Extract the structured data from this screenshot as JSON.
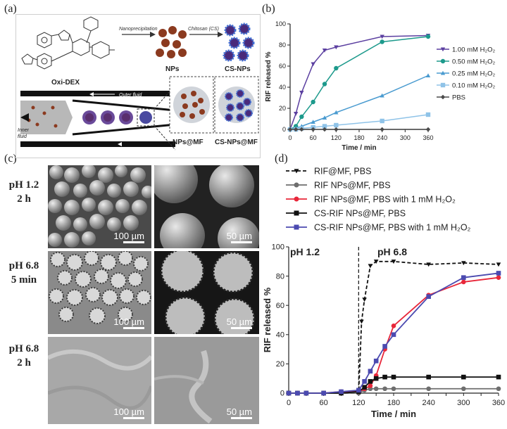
{
  "panels": {
    "a": {
      "label": "(a)",
      "chem_name": "Oxi-DEX",
      "step1_label": "Nanoprecipitation",
      "step2_label": "Chitosan (CS)",
      "np_label": "NPs",
      "csnp_label": "CS-NPs",
      "outer_fluid": "Outer fluid",
      "inner_fluid_1": "Inner",
      "inner_fluid_2": "fluid",
      "np_mf": "NPs@MF",
      "csnp_mf": "CS-NPs@MF",
      "colors": {
        "np": "#8b3a1f",
        "csnp_core": "#4a2a7a",
        "csnp_shell": "#3d6fd6"
      }
    },
    "b": {
      "label": "(b)"
    },
    "c": {
      "label": "(c)",
      "rows": [
        {
          "condition": "pH 1.2",
          "time": "2 h",
          "scale_left": "100 µm",
          "scale_right": "50 µm"
        },
        {
          "condition": "pH 6.8",
          "time": "5 min",
          "scale_left": "100 µm",
          "scale_right": "50 µm"
        },
        {
          "condition": "pH 6.8",
          "time": "2 h",
          "scale_left": "100 µm",
          "scale_right": "50 µm"
        }
      ]
    },
    "d": {
      "label": "(d)",
      "region_1": "pH 1.2",
      "region_2": "pH 6.8"
    }
  },
  "chart_data": [
    {
      "type": "line",
      "panel": "b",
      "xlabel": "Time / min",
      "ylabel": "RIF released %",
      "xlim": [
        0,
        360
      ],
      "ylim": [
        0,
        100
      ],
      "xticks": [
        0,
        60,
        120,
        180,
        240,
        300,
        360
      ],
      "yticks": [
        0,
        20,
        40,
        60,
        80,
        100
      ],
      "legend_position": "right",
      "series": [
        {
          "name": "1.00 mM H₂O₂",
          "color": "#5b3fa0",
          "marker": "triangle-down",
          "x": [
            0,
            15,
            30,
            60,
            90,
            120,
            240,
            360
          ],
          "y": [
            0,
            15,
            35,
            62,
            75,
            78,
            88,
            89
          ]
        },
        {
          "name": "0.50 mM H₂O₂",
          "color": "#1d9a8c",
          "marker": "circle",
          "x": [
            0,
            15,
            30,
            60,
            90,
            120,
            240,
            360
          ],
          "y": [
            0,
            3,
            12,
            26,
            43,
            58,
            83,
            88
          ]
        },
        {
          "name": "0.25 mM H₂O₂",
          "color": "#4a9bd0",
          "marker": "triangle-up",
          "x": [
            0,
            15,
            30,
            60,
            90,
            120,
            240,
            360
          ],
          "y": [
            0,
            1,
            3,
            7,
            11,
            16,
            32,
            51
          ]
        },
        {
          "name": "0.10 mM H₂O₂",
          "color": "#8fc3e8",
          "marker": "square",
          "x": [
            0,
            15,
            30,
            60,
            90,
            120,
            240,
            360
          ],
          "y": [
            0,
            0,
            1,
            2,
            3,
            4,
            8,
            14
          ]
        },
        {
          "name": "PBS",
          "color": "#4a4a4a",
          "marker": "diamond",
          "x": [
            0,
            15,
            30,
            60,
            90,
            120,
            240,
            360
          ],
          "y": [
            0,
            0,
            0,
            0,
            0,
            0,
            0,
            0
          ]
        }
      ]
    },
    {
      "type": "line",
      "panel": "d",
      "xlabel": "Time / min",
      "ylabel": "RIF released %",
      "xlim": [
        0,
        360
      ],
      "ylim": [
        0,
        100
      ],
      "xticks": [
        0,
        30,
        60,
        90,
        120,
        150,
        180,
        210,
        240,
        270,
        300,
        330,
        360
      ],
      "xtick_labels": [
        "0",
        "",
        "60",
        "",
        "120",
        "",
        "180",
        "",
        "240",
        "",
        "300",
        "",
        "360"
      ],
      "yticks": [
        0,
        20,
        40,
        60,
        80,
        100
      ],
      "legend_position": "top",
      "series": [
        {
          "name": "RIF@MF, PBS",
          "color": "#111111",
          "marker": "triangle-down",
          "dash": true,
          "x": [
            0,
            15,
            30,
            60,
            90,
            120,
            125,
            130,
            140,
            150,
            180,
            240,
            300,
            360
          ],
          "y": [
            0,
            0,
            0,
            0,
            0,
            0,
            49,
            64,
            87,
            90,
            90,
            88,
            89,
            88
          ]
        },
        {
          "name": "RIF NPs@MF, PBS",
          "color": "#6e6e6e",
          "marker": "circle",
          "x": [
            0,
            15,
            30,
            60,
            90,
            120,
            130,
            140,
            150,
            165,
            180,
            240,
            300,
            360
          ],
          "y": [
            0,
            0,
            0,
            0,
            0,
            0,
            2,
            3,
            3,
            3,
            3,
            3,
            3,
            3
          ]
        },
        {
          "name": "RIF NPs@MF, PBS with 1 mM H₂O₂",
          "color": "#e8273a",
          "marker": "circle",
          "x": [
            0,
            15,
            30,
            60,
            90,
            120,
            130,
            140,
            150,
            165,
            180,
            240,
            300,
            360
          ],
          "y": [
            0,
            0,
            0,
            0,
            1,
            1,
            3,
            5,
            12,
            30,
            46,
            67,
            76,
            79
          ]
        },
        {
          "name": "CS-RIF NPs@MF, PBS",
          "color": "#111111",
          "marker": "square",
          "x": [
            0,
            15,
            30,
            60,
            90,
            120,
            130,
            140,
            150,
            165,
            180,
            240,
            300,
            360
          ],
          "y": [
            0,
            0,
            0,
            0,
            0,
            1,
            4,
            8,
            10,
            11,
            11,
            11,
            11,
            11
          ]
        },
        {
          "name": "CS-RIF NPs@MF, PBS with 1 mM H₂O₂",
          "color": "#4b4ab0",
          "marker": "square",
          "x": [
            0,
            15,
            30,
            60,
            90,
            120,
            130,
            140,
            150,
            165,
            180,
            240,
            300,
            360
          ],
          "y": [
            0,
            0,
            0,
            0,
            1,
            2,
            8,
            15,
            22,
            32,
            40,
            66,
            79,
            82
          ]
        }
      ]
    }
  ]
}
